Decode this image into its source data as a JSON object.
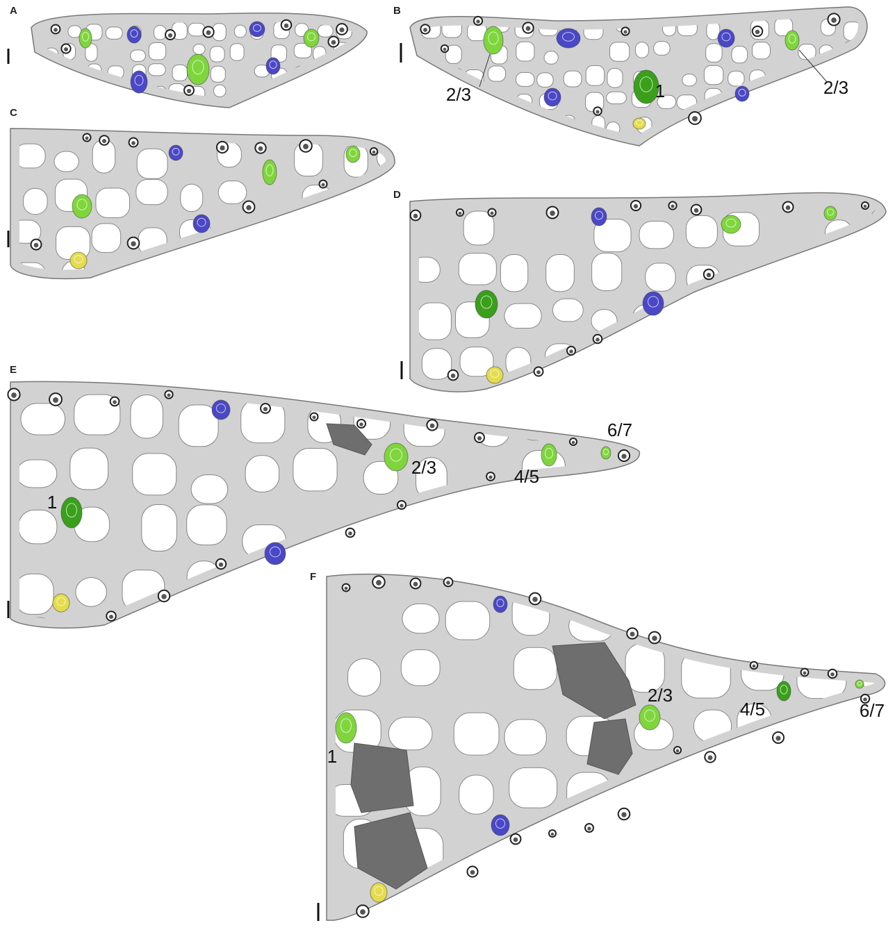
{
  "panels": [
    {
      "letter": "A"
    },
    {
      "letter": "B",
      "labels": [
        "2/3",
        "1",
        "2/3"
      ]
    },
    {
      "letter": "C"
    },
    {
      "letter": "D"
    },
    {
      "letter": "E",
      "labels": [
        "1",
        "2/3",
        "4/5",
        "6/7"
      ]
    },
    {
      "letter": "F",
      "labels": [
        "1",
        "2/3",
        "4/5",
        "6/7"
      ]
    }
  ]
}
